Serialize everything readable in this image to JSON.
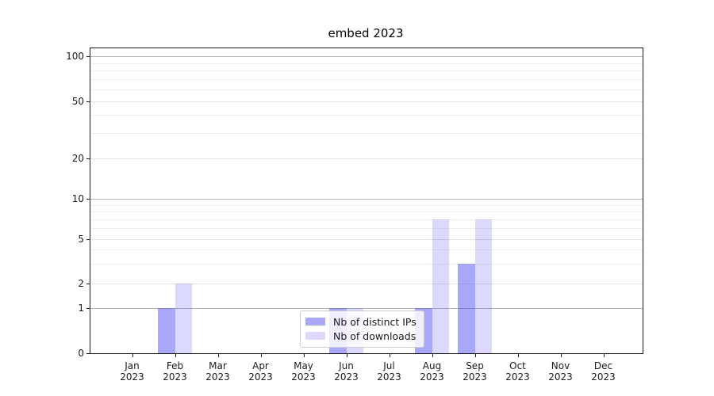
{
  "chart_data": {
    "type": "bar",
    "title": "embed 2023",
    "year_label": "2023",
    "categories": [
      "Jan",
      "Feb",
      "Mar",
      "Apr",
      "May",
      "Jun",
      "Jul",
      "Aug",
      "Sep",
      "Oct",
      "Nov",
      "Dec"
    ],
    "series": [
      {
        "name": "Nb of distinct IPs",
        "color": "#5551f5",
        "alpha": 0.5,
        "values": [
          0,
          1,
          0,
          0,
          0,
          1,
          0,
          1,
          3,
          0,
          0,
          0
        ]
      },
      {
        "name": "Nb of downloads",
        "color": "#5551f5",
        "alpha": 0.21,
        "values": [
          0,
          2,
          0,
          0,
          0,
          1,
          0,
          7,
          7,
          0,
          0,
          0
        ]
      }
    ],
    "y_axis": {
      "scale": "symlog",
      "tick_labels": [
        0,
        1,
        2,
        5,
        10,
        20,
        50,
        100
      ],
      "decade_gridlines": [
        1,
        10,
        100
      ],
      "mid_gridlines": [
        2,
        5,
        20,
        50
      ],
      "minor_gridlines": [
        3,
        4,
        6,
        7,
        8,
        9,
        30,
        40,
        60,
        70,
        80,
        90
      ],
      "ylim": [
        0,
        112
      ]
    },
    "legend": {
      "position": "lower center",
      "items": [
        "Nb of distinct IPs",
        "Nb of downloads"
      ]
    },
    "colors": {
      "bar_dark_rendered": "#aaa8fa",
      "bar_light_rendered": "#dcdaf8",
      "gridline_major": "#b4b4b4",
      "gridline_minor": "#ededed",
      "axis": "#1a1a1a"
    }
  }
}
